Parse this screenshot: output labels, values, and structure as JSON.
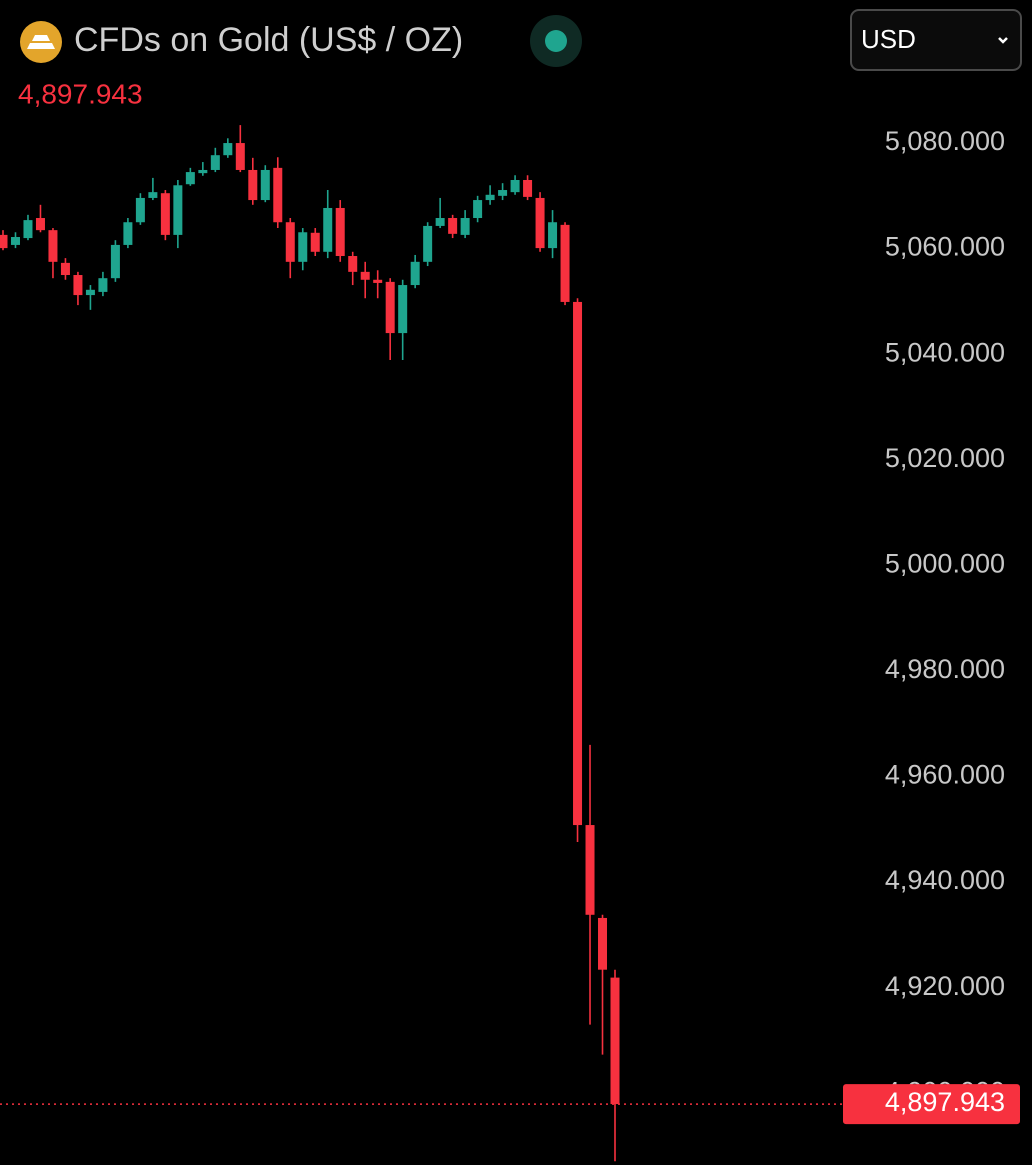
{
  "chart_data": {
    "type": "candlestick",
    "title": "CFDs on Gold (US$ / OZ)",
    "currency_selector": "USD",
    "last_price": {
      "value": 4897.943,
      "label": "4,897.943"
    },
    "up_color": "#1fa58f",
    "down_color": "#f7313f",
    "ylim": [
      4886.4,
      5107.1
    ],
    "yticks": [
      {
        "value": 4900,
        "label": "4,900.000"
      },
      {
        "value": 4920,
        "label": "4,920.000"
      },
      {
        "value": 4940,
        "label": "4,940.000"
      },
      {
        "value": 4960,
        "label": "4,960.000"
      },
      {
        "value": 4980,
        "label": "4,980.000"
      },
      {
        "value": 5000,
        "label": "5,000.000"
      },
      {
        "value": 5020,
        "label": "5,020.000"
      },
      {
        "value": 5040,
        "label": "5,040.000"
      },
      {
        "value": 5060,
        "label": "5,060.000"
      },
      {
        "value": 5080,
        "label": "5,080.000"
      }
    ],
    "open": [
      5062.6,
      5060.7,
      5062.0,
      5065.8,
      5063.5,
      5057.3,
      5055.0,
      5051.2,
      5051.8,
      5054.4,
      5060.7,
      5065.0,
      5069.6,
      5070.5,
      5062.6,
      5072.2,
      5074.3,
      5074.9,
      5077.7,
      5080.0,
      5074.9,
      5069.2,
      5075.3,
      5065.0,
      5057.5,
      5063.0,
      5059.4,
      5067.7,
      5058.6,
      5055.6,
      5054.1,
      5053.7,
      5044.0,
      5053.1,
      5057.5,
      5064.3,
      5065.8,
      5062.6,
      5065.8,
      5069.2,
      5070.0,
      5070.7,
      5073.0,
      5069.6,
      5060.1,
      5064.5,
      5049.9,
      4950.8,
      4933.2,
      4921.9
    ],
    "high": [
      5063.5,
      5063.1,
      5066.4,
      5068.3,
      5063.9,
      5058.2,
      5055.6,
      5053.1,
      5055.6,
      5061.6,
      5065.8,
      5070.5,
      5073.4,
      5071.1,
      5073.0,
      5075.3,
      5076.4,
      5079.1,
      5080.9,
      5083.4,
      5077.2,
      5075.8,
      5077.3,
      5065.8,
      5063.9,
      5063.9,
      5071.1,
      5069.2,
      5059.4,
      5057.5,
      5055.9,
      5054.4,
      5054.1,
      5058.8,
      5065.0,
      5069.6,
      5066.4,
      5067.3,
      5070.0,
      5072.0,
      5072.4,
      5073.9,
      5073.9,
      5070.7,
      5067.3,
      5065.0,
      5050.6,
      4966.0,
      4933.8,
      4923.4
    ],
    "low": [
      5059.7,
      5060.1,
      5061.6,
      5063.1,
      5054.4,
      5054.1,
      5049.3,
      5048.4,
      5051.0,
      5053.7,
      5060.1,
      5064.5,
      5069.2,
      5061.6,
      5060.1,
      5071.9,
      5073.8,
      5074.5,
      5077.2,
      5074.5,
      5068.3,
      5068.8,
      5063.9,
      5054.4,
      5055.9,
      5058.6,
      5058.2,
      5057.5,
      5053.1,
      5050.6,
      5050.6,
      5038.9,
      5038.9,
      5052.5,
      5056.7,
      5063.9,
      5062.0,
      5062.0,
      5065.0,
      5068.3,
      5069.2,
      5070.2,
      5069.2,
      5059.4,
      5058.2,
      5049.3,
      4947.6,
      4913.0,
      4907.3,
      4887.1
    ],
    "close": [
      5060.1,
      5062.2,
      5065.4,
      5063.5,
      5057.5,
      5055.0,
      5051.2,
      5052.2,
      5054.4,
      5060.7,
      5065.0,
      5069.6,
      5070.7,
      5062.6,
      5072.0,
      5074.5,
      5074.9,
      5077.7,
      5080.0,
      5074.9,
      5069.2,
      5074.9,
      5065.0,
      5057.5,
      5063.1,
      5059.4,
      5067.7,
      5058.6,
      5055.6,
      5054.1,
      5053.5,
      5044.0,
      5053.1,
      5057.5,
      5064.3,
      5065.8,
      5062.8,
      5065.8,
      5069.2,
      5070.2,
      5071.1,
      5073.0,
      5069.8,
      5060.1,
      5065.0,
      5049.9,
      4950.8,
      4933.8,
      4923.4,
      4897.943
    ]
  }
}
